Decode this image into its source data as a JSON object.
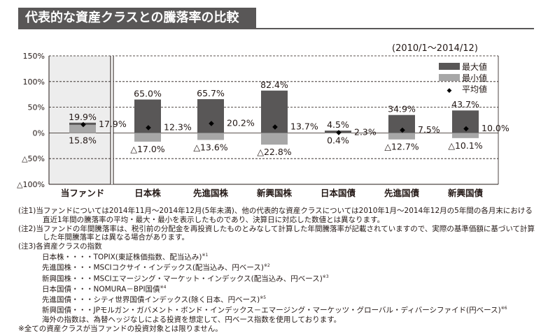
{
  "title": "代表的な資産クラスとの騰落率の比較",
  "period": "(2010/1～2014/12)",
  "colors": {
    "title_bg": "#595757",
    "max_bar": "#595757",
    "min_bar": "#a7a7a7",
    "fund_panel": "#ededed"
  },
  "chart_data": {
    "type": "bar",
    "categories": [
      "当ファンド",
      "日本株",
      "先進国株",
      "新興国株",
      "日本国債",
      "先進国債",
      "新興国債"
    ],
    "series": [
      {
        "name": "最大値",
        "values": [
          19.9,
          65.0,
          65.7,
          82.4,
          4.5,
          34.9,
          43.7
        ],
        "labels": [
          "19.9%",
          "65.0%",
          "65.7%",
          "82.4%",
          "4.5%",
          "34.9%",
          "43.7%"
        ]
      },
      {
        "name": "最小値",
        "values": [
          15.8,
          -17.0,
          -13.6,
          -22.8,
          0.4,
          -12.7,
          -10.1
        ],
        "labels": [
          "15.8%",
          "△17.0%",
          "△13.6%",
          "△22.8%",
          "0.4%",
          "△12.7%",
          "△10.1%"
        ]
      },
      {
        "name": "平均値",
        "values": [
          17.9,
          12.3,
          20.2,
          13.7,
          2.3,
          7.5,
          10.0
        ],
        "labels": [
          "17.9%",
          "12.3%",
          "20.2%",
          "13.7%",
          "2.3%",
          "7.5%",
          "10.0%"
        ]
      }
    ],
    "yticks": [
      150,
      100,
      50,
      0,
      -50,
      -100
    ],
    "ytick_labels": [
      "150%",
      "100%",
      "50%",
      "0%",
      "△50%",
      "△100%"
    ],
    "ylim": [
      -100,
      150
    ],
    "legend_position": "top-right"
  },
  "notes": {
    "note1": "(注1)当ファンドについては2014年11月～2014年12月(5年未満)、他の代表的な資産クラスについては2010年1月～2014年12月の5年間の各月末における直近1年間の騰落率の平均・最大・最小を表示したものであり、決算日に対応した数値とは異なります。",
    "note2": "(注2)当ファンドの年間騰落率は、税引前の分配金を再投資したものとみなして計算した年間騰落率が記載されていますので、実際の基準価額に基づいて計算した年間騰落率とは異なる場合があります。",
    "note3": "(注3)各資産クラスの指数",
    "indices": [
      {
        "name": "日本株・・・・",
        "desc": "TOPIX(東証株価指数、配当込み)",
        "mark": "※1"
      },
      {
        "name": "先進国株・・・",
        "desc": "MSCIコクサイ・インデックス(配当込み、円ベース)",
        "mark": "※2"
      },
      {
        "name": "新興国株・・・",
        "desc": "MSCIエマージング・マーケット・インデックス(配当込み、円ベース)",
        "mark": "※3"
      },
      {
        "name": "日本国債・・・",
        "desc": "NOMURA－BPI国債",
        "mark": "※4"
      },
      {
        "name": "先進国債・・・",
        "desc": "シティ世界国債インデックス(除く日本、円ベース)",
        "mark": "※5"
      },
      {
        "name": "新興国債・・・",
        "desc": "JPモルガン・ガバメント・ボンド・インデックス－エマージング・マーケッツ・グローバル・ディバーシファイド(円ベース)",
        "mark": "※6"
      }
    ],
    "overseas": "海外の指数は、為替ヘッジなしによる投資を想定して、円ベース指数を使用しております。",
    "last": "※全ての資産クラスが当ファンドの投資対象とは限りません。"
  }
}
